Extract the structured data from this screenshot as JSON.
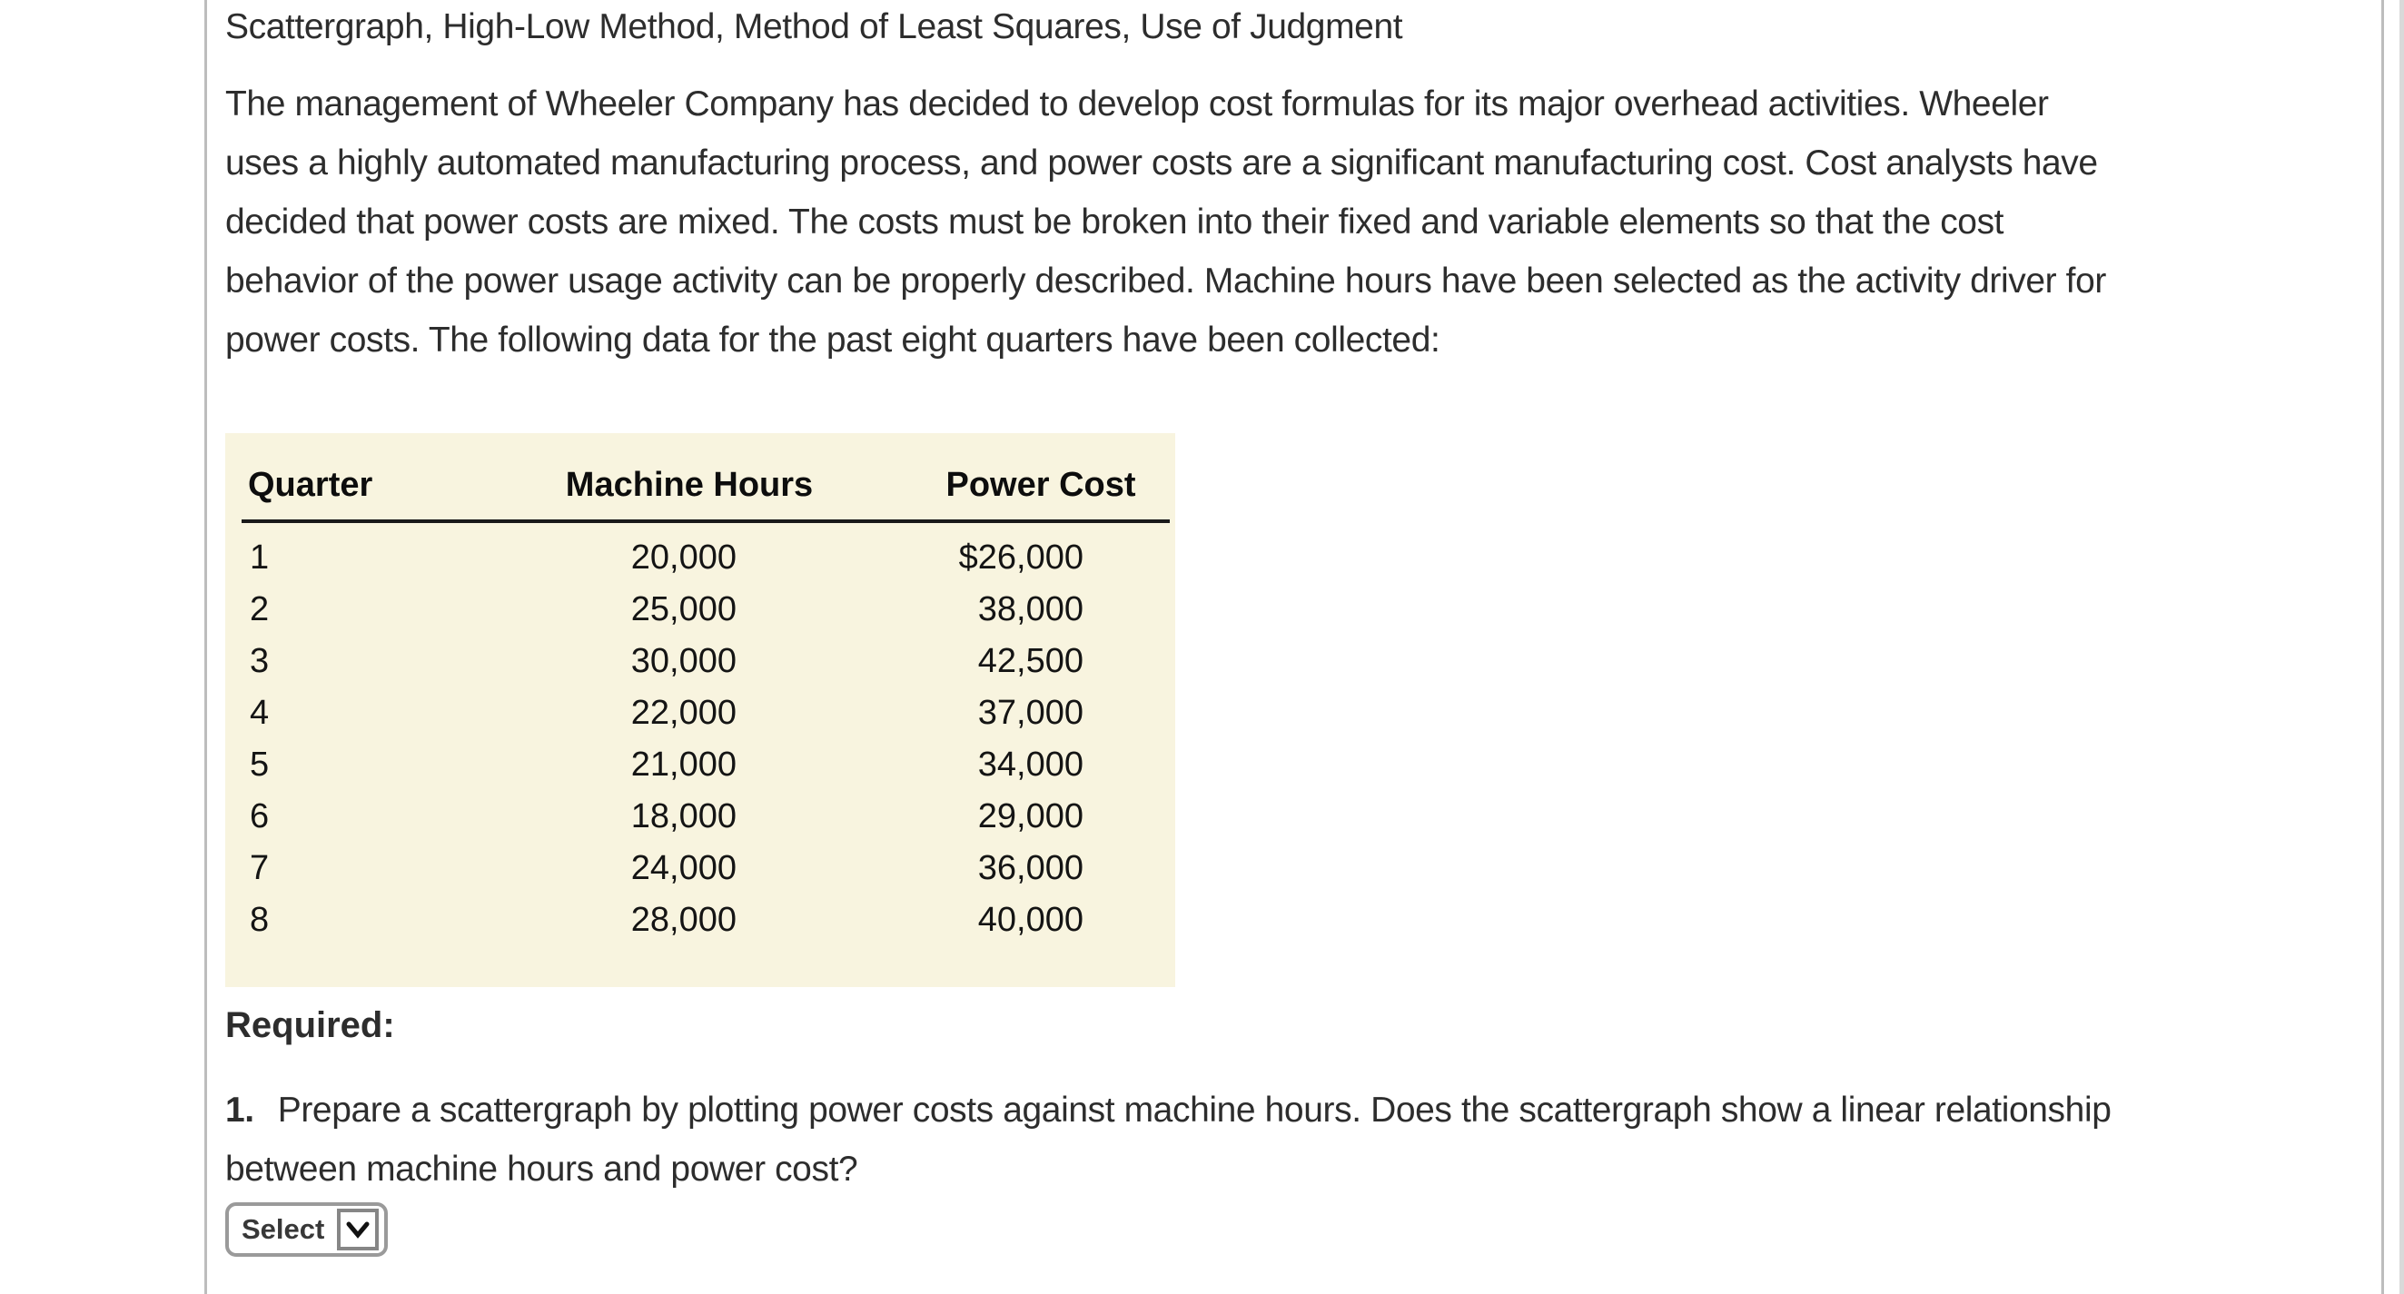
{
  "page": {
    "background": "#ffffff",
    "frame_border_color": "#bdbdbd",
    "table_background": "#f8f4df",
    "text_color": "#2d2d2d"
  },
  "title": "Scattergraph, High-Low Method, Method of Least Squares, Use of Judgment",
  "intro_lines": [
    "The management of Wheeler Company has decided to develop cost formulas for its major overhead activities. Wheeler",
    "uses a highly automated manufacturing process, and power costs are a significant manufacturing cost. Cost analysts have",
    "decided that power costs are mixed. The costs must be broken into their fixed and variable elements so that the cost",
    "behavior of the power usage activity can be properly described. Machine hours have been selected as the activity driver for",
    "power costs. The following data for the past eight quarters have been collected:"
  ],
  "table": {
    "headers": [
      "Quarter",
      "Machine Hours",
      "Power Cost"
    ],
    "rows": [
      [
        "1",
        "20,000",
        "$26,000"
      ],
      [
        "2",
        "25,000",
        "38,000"
      ],
      [
        "3",
        "30,000",
        "42,500"
      ],
      [
        "4",
        "22,000",
        "37,000"
      ],
      [
        "5",
        "21,000",
        "34,000"
      ],
      [
        "6",
        "18,000",
        "29,000"
      ],
      [
        "7",
        "24,000",
        "36,000"
      ],
      [
        "8",
        "28,000",
        "40,000"
      ]
    ]
  },
  "required_label": "Required:",
  "question": {
    "number": "1.",
    "line1": "Prepare a scattergraph by plotting power costs against machine hours. Does the scattergraph show a linear relationship",
    "line2": "between machine hours and power cost?"
  },
  "select": {
    "label": "Select"
  }
}
